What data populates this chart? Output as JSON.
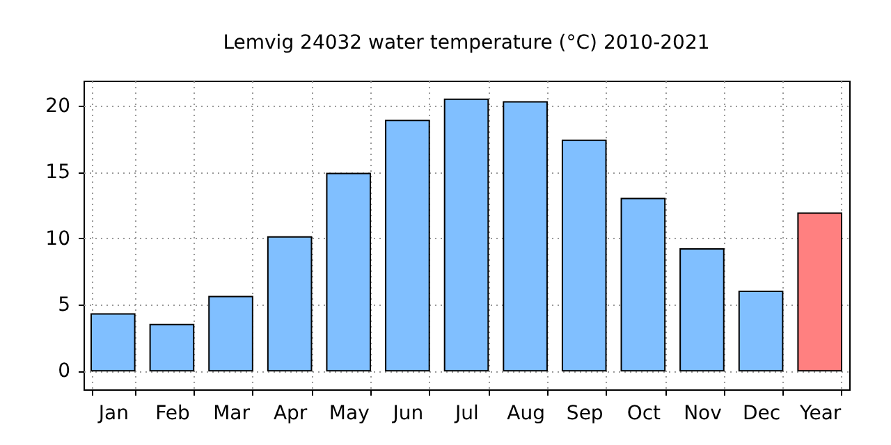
{
  "chart_data": {
    "type": "bar",
    "title": "Lemvig 24032 water temperature (°C) 2010-2021",
    "categories": [
      "Jan",
      "Feb",
      "Mar",
      "Apr",
      "May",
      "Jun",
      "Jul",
      "Aug",
      "Sep",
      "Oct",
      "Nov",
      "Dec",
      "Year"
    ],
    "values": [
      4.3,
      3.5,
      5.6,
      10.1,
      14.9,
      18.9,
      20.5,
      20.3,
      17.4,
      13.0,
      9.2,
      6.0,
      11.9
    ],
    "colors": [
      "#80bfff",
      "#80bfff",
      "#80bfff",
      "#80bfff",
      "#80bfff",
      "#80bfff",
      "#80bfff",
      "#80bfff",
      "#80bfff",
      "#80bfff",
      "#80bfff",
      "#80bfff",
      "#ff8080"
    ],
    "ylim": [
      -1.4,
      21.9
    ],
    "yticks": [
      0,
      5,
      10,
      15,
      20
    ],
    "grid": true
  }
}
